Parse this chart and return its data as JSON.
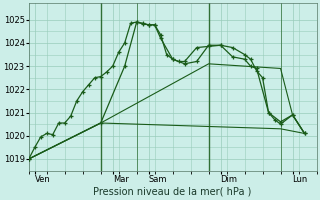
{
  "title": "Pression niveau de la mer( hPa )",
  "bg_color": "#cceee8",
  "grid_color": "#99ccbb",
  "line_color": "#1a5c1a",
  "ylim": [
    1018.5,
    1025.7
  ],
  "yticks": [
    1019,
    1020,
    1021,
    1022,
    1023,
    1024,
    1025
  ],
  "xlim": [
    0,
    24
  ],
  "xtick_labels": [
    "Ven",
    "Mar",
    "Sam",
    "Dim",
    "Lun"
  ],
  "xtick_positions": [
    0.5,
    7,
    10,
    16,
    22
  ],
  "vlines": [
    6,
    9,
    15,
    21
  ],
  "dark_vlines": [
    6,
    15
  ],
  "series1_dots": {
    "x": [
      0,
      0.5,
      1,
      1.5,
      2,
      2.5,
      3,
      3.5,
      4,
      4.5,
      5,
      5.5,
      6,
      6.5,
      7,
      7.5,
      8,
      8.5,
      9,
      9.5,
      10,
      10.5,
      11,
      11.5,
      12,
      12.5,
      13,
      14,
      15,
      16,
      17,
      18,
      18.5,
      19,
      19.5,
      20,
      20.5,
      21,
      22,
      23
    ],
    "y": [
      1019.0,
      1019.5,
      1019.95,
      1020.1,
      1020.05,
      1020.55,
      1020.55,
      1020.85,
      1021.5,
      1021.9,
      1022.2,
      1022.5,
      1022.55,
      1022.75,
      1023.0,
      1023.6,
      1024.0,
      1024.85,
      1024.9,
      1024.82,
      1024.78,
      1024.78,
      1024.35,
      1023.5,
      1023.3,
      1023.2,
      1023.2,
      1023.8,
      1023.85,
      1023.9,
      1023.8,
      1023.5,
      1023.3,
      1022.8,
      1022.5,
      1021.0,
      1020.7,
      1020.5,
      1020.9,
      1020.1
    ]
  },
  "series2_dots": {
    "x": [
      0,
      6,
      8,
      9,
      9.5,
      10,
      10.5,
      11,
      12,
      13,
      14,
      15,
      16,
      17,
      18,
      18.5,
      19,
      20,
      21,
      22,
      23
    ],
    "y": [
      1019.0,
      1020.55,
      1023.0,
      1024.9,
      1024.85,
      1024.78,
      1024.78,
      1024.2,
      1023.3,
      1023.1,
      1023.2,
      1023.9,
      1023.9,
      1023.4,
      1023.3,
      1023.0,
      1022.9,
      1021.0,
      1020.6,
      1020.9,
      1020.1
    ]
  },
  "series3": {
    "x": [
      0,
      6,
      15,
      21,
      22,
      23
    ],
    "y": [
      1019.0,
      1020.55,
      1023.1,
      1022.9,
      1020.9,
      1020.1
    ]
  },
  "series4": {
    "x": [
      0,
      6,
      21,
      23
    ],
    "y": [
      1019.0,
      1020.55,
      1020.3,
      1020.1
    ]
  }
}
